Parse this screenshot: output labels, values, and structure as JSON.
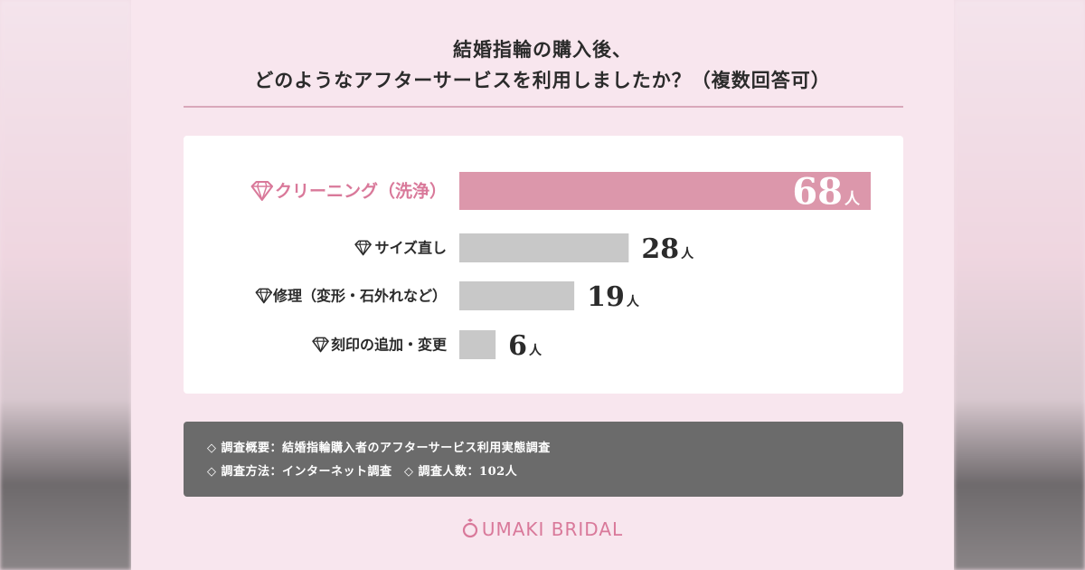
{
  "title": {
    "line1": "結婚指輪の購入後、",
    "line2": "どのようなアフターサービスを利用しましたか？（複数回答可）"
  },
  "colors": {
    "highlight_bar": "#dc97ab",
    "highlight_text": "#d9799a",
    "bar": "#c8c8c8",
    "text": "#2b2b2b"
  },
  "chart_data": {
    "type": "bar",
    "orientation": "horizontal",
    "categories": [
      "クリーニング（洗浄）",
      "サイズ直し",
      "修理（変形・石外れなど）",
      "刻印の追加・変更"
    ],
    "values": [
      68,
      28,
      19,
      6
    ],
    "value_unit": "人",
    "highlight_index": 0,
    "xlim": [
      0,
      68
    ]
  },
  "note": {
    "line1": "◇ 調査概要：結婚指輪購入者のアフターサービス利用実態調査",
    "line2": "◇ 調査方法：インターネット調査　◇ 調査人数：102人"
  },
  "brand": {
    "name": "UMAKI BRIDAL",
    "icon": "ring-icon"
  }
}
